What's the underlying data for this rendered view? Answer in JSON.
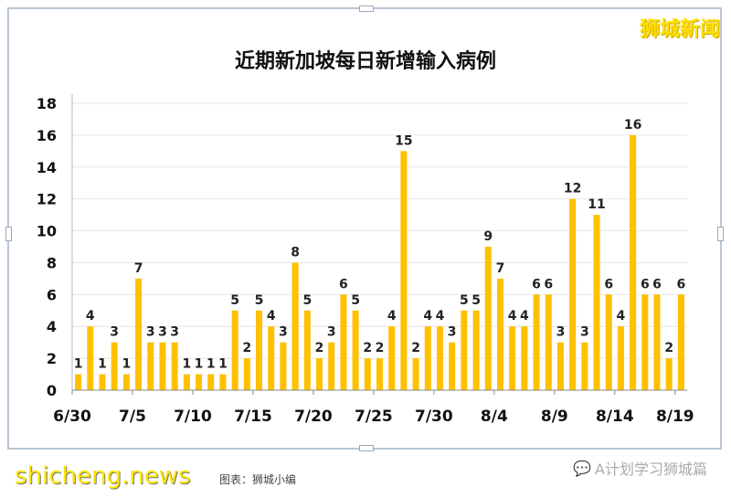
{
  "watermarks": {
    "top": "狮城新闻",
    "bottom": "shicheng.news",
    "credit": "图表：狮城小编",
    "wechat": "A计划学习狮城篇"
  },
  "colors": {
    "bar": "#FFC000",
    "grid": "#e6e6e6"
  },
  "chart_data": {
    "type": "bar",
    "title": "近期新加坡每日新增输入病例",
    "xlabel": "",
    "ylabel": "",
    "ylim": [
      0,
      18
    ],
    "yticks": [
      0,
      2,
      4,
      6,
      8,
      10,
      12,
      14,
      16,
      18
    ],
    "grid": true,
    "categories": [
      "6/30",
      "7/1",
      "7/2",
      "7/3",
      "7/4",
      "7/5",
      "7/6",
      "7/7",
      "7/8",
      "7/9",
      "7/10",
      "7/11",
      "7/12",
      "7/13",
      "7/14",
      "7/15",
      "7/16",
      "7/17",
      "7/18",
      "7/19",
      "7/20",
      "7/21",
      "7/22",
      "7/23",
      "7/24",
      "7/25",
      "7/26",
      "7/27",
      "7/28",
      "7/29",
      "7/30",
      "7/31",
      "8/1",
      "8/2",
      "8/3",
      "8/4",
      "8/5",
      "8/6",
      "8/7",
      "8/8",
      "8/9",
      "8/10",
      "8/11",
      "8/12",
      "8/13",
      "8/14",
      "8/15",
      "8/16",
      "8/17",
      "8/18",
      "8/19"
    ],
    "xtick_labels": [
      "6/30",
      "7/5",
      "7/10",
      "7/15",
      "7/20",
      "7/25",
      "7/30",
      "8/4",
      "8/9",
      "8/14",
      "8/19"
    ],
    "values": [
      1,
      4,
      1,
      3,
      1,
      7,
      3,
      3,
      3,
      1,
      1,
      1,
      1,
      5,
      2,
      5,
      4,
      3,
      8,
      5,
      2,
      3,
      6,
      5,
      2,
      2,
      4,
      15,
      2,
      4,
      4,
      3,
      5,
      5,
      9,
      7,
      4,
      4,
      6,
      6,
      3,
      12,
      3,
      11,
      6,
      4,
      16,
      6,
      6,
      2,
      6
    ]
  }
}
